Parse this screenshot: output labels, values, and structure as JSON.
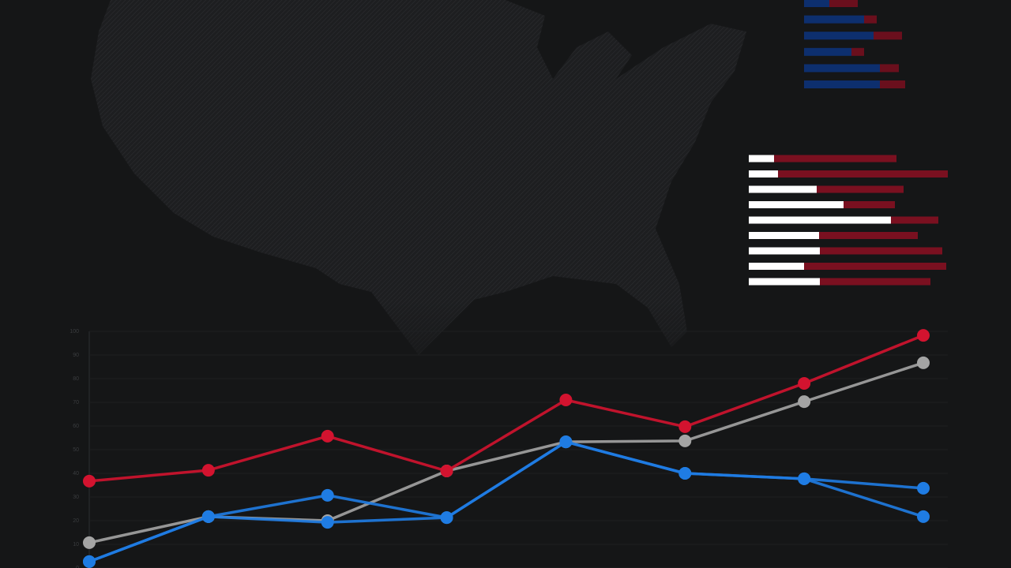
{
  "chart_data": [
    {
      "type": "line",
      "categories": [
        null,
        null,
        null,
        null,
        null,
        null,
        null,
        null
      ],
      "series": [
        {
          "color": "#a4a4a4",
          "values": [
            10.7,
            21.7,
            20,
            41,
            53.3,
            53.7,
            70.3,
            86.7
          ]
        },
        {
          "color": "#1f7ce3",
          "values": [
            2.7,
            21.7,
            19.3,
            21.3,
            53.3,
            40,
            37.7,
            21.7
          ]
        },
        {
          "color": "#1f7ce3",
          "values": [
            2.7,
            21.7,
            30.7,
            21.3,
            53.3,
            40,
            37.7,
            33.7
          ]
        },
        {
          "color": "#d3132f",
          "values": [
            36.7,
            41.3,
            55.7,
            41,
            71,
            59.7,
            78,
            98.3
          ]
        }
      ],
      "ylim": [
        0,
        100
      ],
      "yticks": [
        0,
        10,
        20,
        30,
        40,
        50,
        60,
        70,
        80,
        90,
        100
      ],
      "grid": true
    },
    {
      "type": "stacked-bar",
      "series": [
        {
          "color": "#0d2f6e",
          "values": [
            40,
            95,
            110,
            75,
            120,
            120
          ]
        },
        {
          "color": "#6a0f1d",
          "values": [
            45,
            20,
            45,
            20,
            30,
            40
          ]
        }
      ],
      "xlim": [
        0,
        250
      ]
    },
    {
      "type": "stacked-bar",
      "series": [
        {
          "color": "#ffffff",
          "values": [
            32,
            37,
            86,
            120,
            180,
            89,
            90,
            70,
            90
          ]
        },
        {
          "color": "#7a1020",
          "values": [
            155,
            215,
            110,
            65,
            60,
            125,
            155,
            180,
            140
          ]
        }
      ],
      "xlim": [
        0,
        250
      ]
    }
  ]
}
